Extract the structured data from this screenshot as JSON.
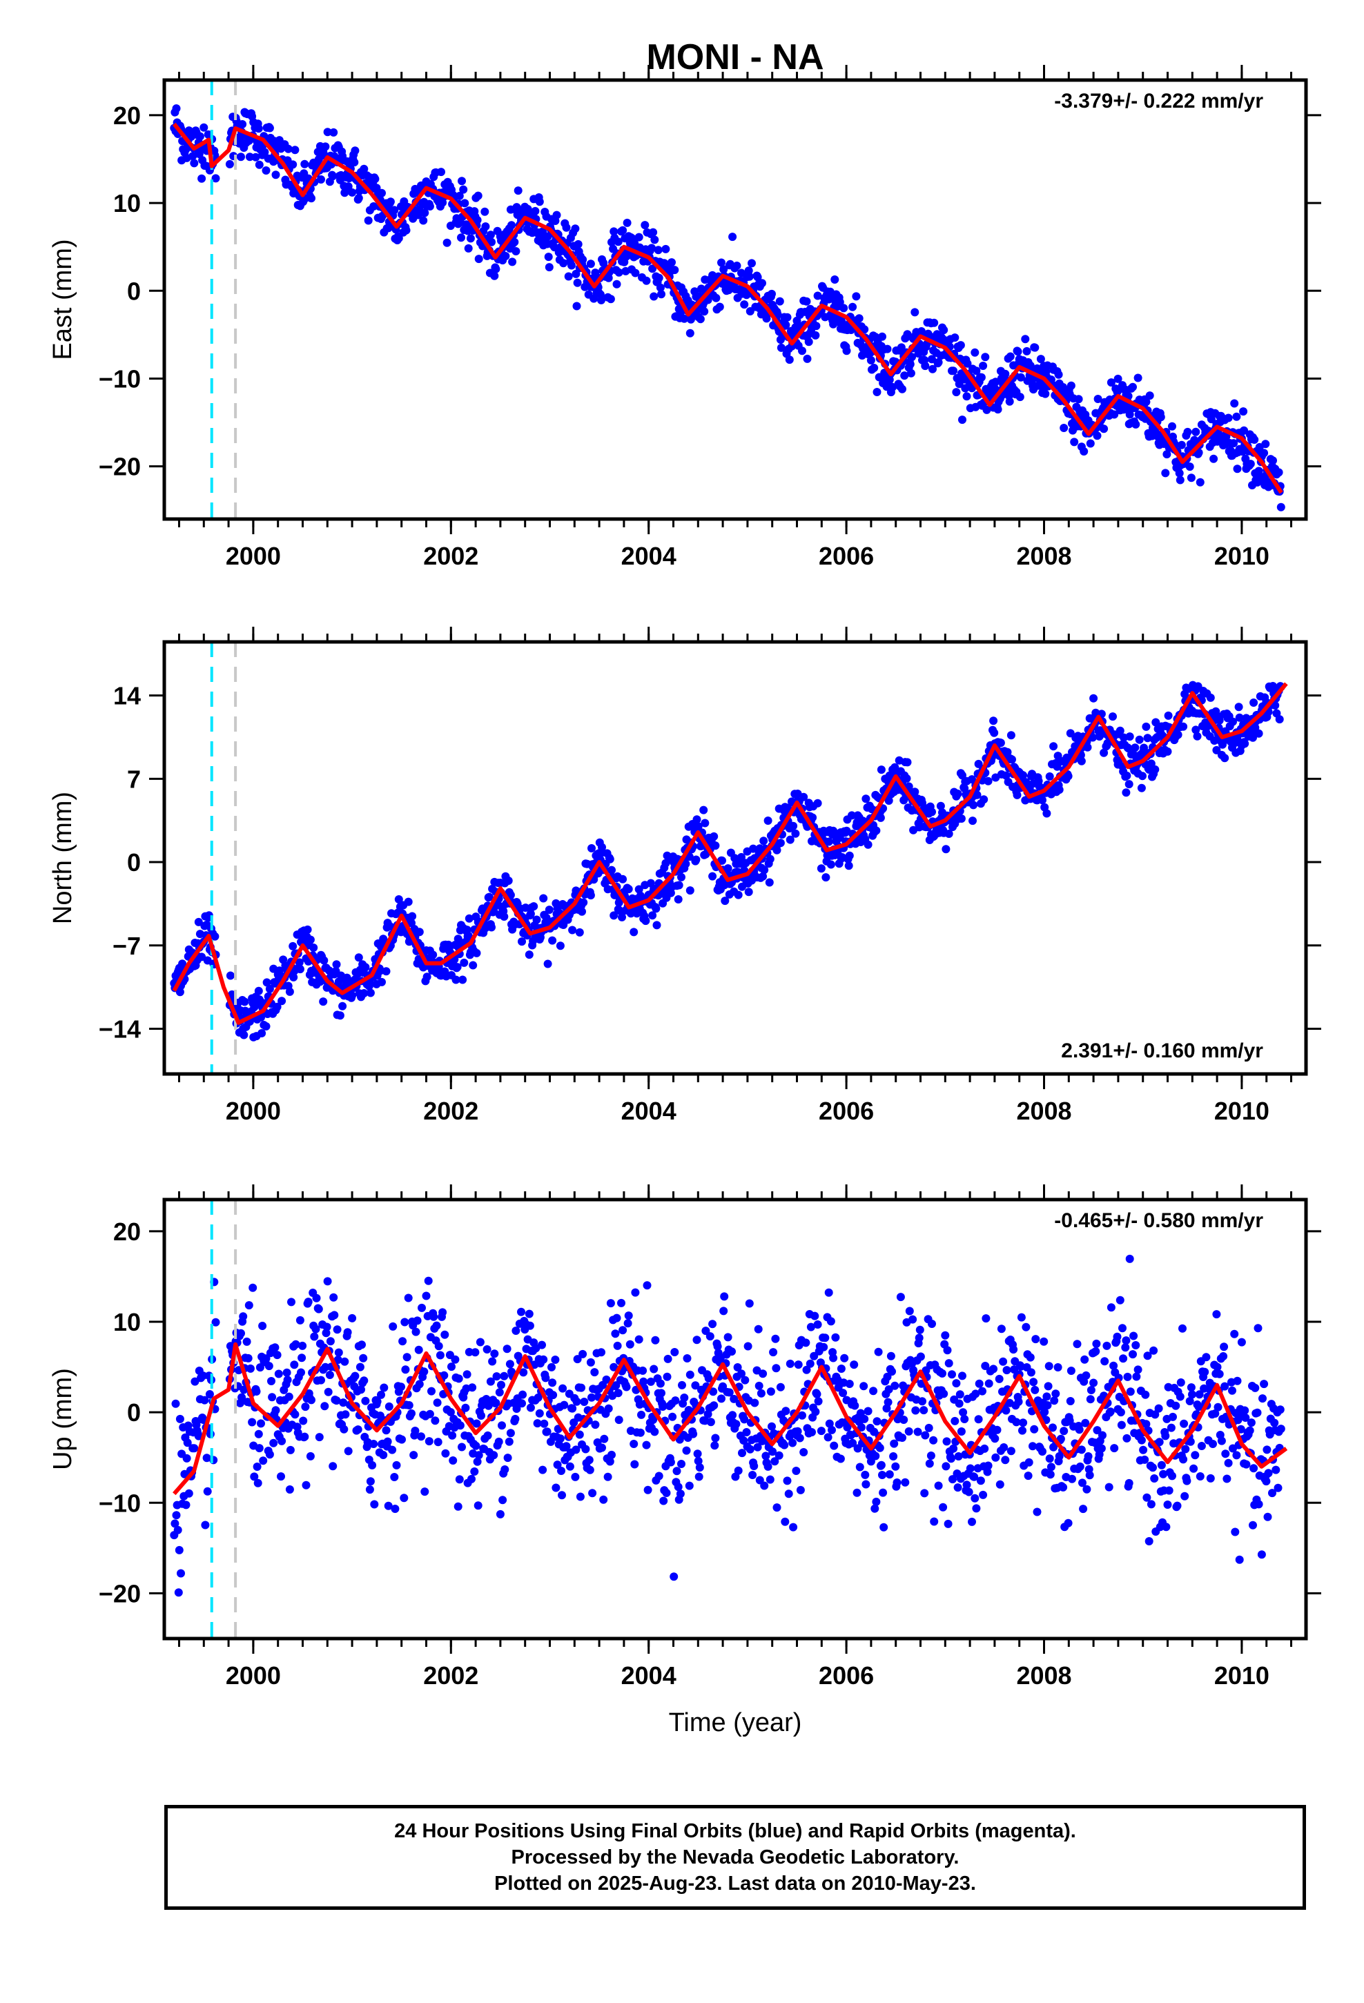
{
  "chart_data": {
    "title": "MONI - NA",
    "type": "scatter",
    "xlabel": "Time (year)",
    "xlim": [
      1999.1,
      2010.65
    ],
    "xticks": [
      2000,
      2002,
      2004,
      2006,
      2008,
      2010
    ],
    "markers": [
      {
        "name": "equipment-change",
        "x": 1999.58,
        "color": "#00e5ff"
      },
      {
        "name": "equipment-change",
        "x": 1999.82,
        "color": "#c8c8c8"
      }
    ],
    "colors": {
      "points": "#0000ff",
      "fit": "#ff0000"
    },
    "panels": [
      {
        "ylabel": "East (mm)",
        "ylim": [
          -26,
          24
        ],
        "yticks": [
          20,
          10,
          0,
          -10,
          -20
        ],
        "rate": "-3.379+/- 0.222 mm/yr",
        "rate_position": "top-right",
        "trend": -3.379,
        "scatter": 1.5,
        "fit": [
          [
            1999.2,
            19.0
          ],
          [
            1999.4,
            16.2
          ],
          [
            1999.55,
            17.2
          ],
          [
            1999.58,
            14.2
          ],
          [
            1999.75,
            16.0
          ],
          [
            1999.82,
            18.5
          ],
          [
            2000.1,
            17.2
          ],
          [
            2000.3,
            14.5
          ],
          [
            2000.5,
            10.9
          ],
          [
            2000.75,
            15.2
          ],
          [
            2001.0,
            13.5
          ],
          [
            2001.2,
            11.0
          ],
          [
            2001.45,
            7.3
          ],
          [
            2001.75,
            11.7
          ],
          [
            2002.0,
            10.5
          ],
          [
            2002.2,
            8.0
          ],
          [
            2002.45,
            3.8
          ],
          [
            2002.75,
            8.3
          ],
          [
            2003.0,
            7.0
          ],
          [
            2003.2,
            4.5
          ],
          [
            2003.45,
            0.5
          ],
          [
            2003.75,
            5.0
          ],
          [
            2004.0,
            3.8
          ],
          [
            2004.2,
            1.5
          ],
          [
            2004.4,
            -2.7
          ],
          [
            2004.75,
            1.7
          ],
          [
            2005.0,
            0.5
          ],
          [
            2005.2,
            -2.0
          ],
          [
            2005.45,
            -6.0
          ],
          [
            2005.75,
            -1.7
          ],
          [
            2006.0,
            -3.0
          ],
          [
            2006.2,
            -5.5
          ],
          [
            2006.45,
            -9.5
          ],
          [
            2006.75,
            -5.2
          ],
          [
            2007.0,
            -6.5
          ],
          [
            2007.2,
            -9.0
          ],
          [
            2007.45,
            -13.0
          ],
          [
            2007.75,
            -8.7
          ],
          [
            2008.0,
            -10.0
          ],
          [
            2008.2,
            -12.5
          ],
          [
            2008.45,
            -16.3
          ],
          [
            2008.75,
            -12.0
          ],
          [
            2009.0,
            -13.4
          ],
          [
            2009.2,
            -16.0
          ],
          [
            2009.4,
            -19.5
          ],
          [
            2009.75,
            -15.5
          ],
          [
            2010.0,
            -16.8
          ],
          [
            2010.2,
            -19.5
          ],
          [
            2010.4,
            -23.0
          ]
        ]
      },
      {
        "ylabel": "North (mm)",
        "ylim": [
          -17.8,
          18.5
        ],
        "yticks": [
          14,
          7,
          0,
          -7,
          -14
        ],
        "rate": "2.391+/- 0.160 mm/yr",
        "rate_position": "bottom-right",
        "trend": 2.391,
        "scatter": 1.0,
        "fit": [
          [
            1999.2,
            -10.8
          ],
          [
            1999.35,
            -8.5
          ],
          [
            1999.55,
            -6.2
          ],
          [
            1999.7,
            -10.5
          ],
          [
            1999.85,
            -13.5
          ],
          [
            2000.1,
            -12.5
          ],
          [
            2000.3,
            -10.0
          ],
          [
            2000.5,
            -7.0
          ],
          [
            2000.75,
            -10.0
          ],
          [
            2000.9,
            -11.0
          ],
          [
            2001.2,
            -9.5
          ],
          [
            2001.5,
            -4.5
          ],
          [
            2001.75,
            -8.5
          ],
          [
            2001.9,
            -8.5
          ],
          [
            2002.2,
            -6.8
          ],
          [
            2002.5,
            -2.2
          ],
          [
            2002.8,
            -6.0
          ],
          [
            2003.0,
            -5.5
          ],
          [
            2003.25,
            -3.5
          ],
          [
            2003.5,
            0.0
          ],
          [
            2003.8,
            -3.8
          ],
          [
            2004.0,
            -3.2
          ],
          [
            2004.25,
            -1.0
          ],
          [
            2004.5,
            2.5
          ],
          [
            2004.8,
            -1.5
          ],
          [
            2005.0,
            -1.0
          ],
          [
            2005.25,
            1.5
          ],
          [
            2005.5,
            5.0
          ],
          [
            2005.8,
            1.0
          ],
          [
            2006.0,
            1.5
          ],
          [
            2006.25,
            3.5
          ],
          [
            2006.5,
            7.2
          ],
          [
            2006.85,
            3.0
          ],
          [
            2007.0,
            3.5
          ],
          [
            2007.25,
            5.5
          ],
          [
            2007.5,
            9.8
          ],
          [
            2007.85,
            5.5
          ],
          [
            2008.0,
            6.0
          ],
          [
            2008.25,
            8.0
          ],
          [
            2008.55,
            12.2
          ],
          [
            2008.85,
            8.0
          ],
          [
            2009.0,
            8.5
          ],
          [
            2009.25,
            10.5
          ],
          [
            2009.5,
            14.2
          ],
          [
            2009.8,
            10.5
          ],
          [
            2010.0,
            11.0
          ],
          [
            2010.2,
            12.5
          ],
          [
            2010.45,
            15.0
          ]
        ]
      },
      {
        "ylabel": "Up (mm)",
        "ylim": [
          -25,
          23.5
        ],
        "yticks": [
          20,
          10,
          0,
          -10,
          -20
        ],
        "rate": "-0.465+/- 0.580 mm/yr",
        "rate_position": "top-right",
        "trend": -0.465,
        "scatter": 4.5,
        "fit": [
          [
            1999.2,
            -9.0
          ],
          [
            1999.4,
            -6.5
          ],
          [
            1999.6,
            1.5
          ],
          [
            1999.75,
            2.5
          ],
          [
            1999.82,
            7.5
          ],
          [
            2000.0,
            1.0
          ],
          [
            2000.25,
            -1.5
          ],
          [
            2000.5,
            2.0
          ],
          [
            2000.75,
            7.0
          ],
          [
            2001.0,
            1.0
          ],
          [
            2001.25,
            -2.0
          ],
          [
            2001.5,
            1.0
          ],
          [
            2001.75,
            6.5
          ],
          [
            2002.0,
            1.5
          ],
          [
            2002.25,
            -2.3
          ],
          [
            2002.5,
            0.5
          ],
          [
            2002.75,
            6.2
          ],
          [
            2003.0,
            0.5
          ],
          [
            2003.2,
            -2.8
          ],
          [
            2003.5,
            1.0
          ],
          [
            2003.75,
            5.8
          ],
          [
            2004.0,
            1.0
          ],
          [
            2004.25,
            -3.0
          ],
          [
            2004.5,
            0.5
          ],
          [
            2004.75,
            5.3
          ],
          [
            2005.0,
            0.0
          ],
          [
            2005.25,
            -3.5
          ],
          [
            2005.5,
            0.0
          ],
          [
            2005.75,
            5.0
          ],
          [
            2006.0,
            -0.5
          ],
          [
            2006.25,
            -4.0
          ],
          [
            2006.5,
            0.0
          ],
          [
            2006.75,
            4.5
          ],
          [
            2007.0,
            -1.0
          ],
          [
            2007.25,
            -4.5
          ],
          [
            2007.5,
            -0.5
          ],
          [
            2007.75,
            4.0
          ],
          [
            2008.0,
            -1.5
          ],
          [
            2008.25,
            -5.0
          ],
          [
            2008.5,
            -1.0
          ],
          [
            2008.75,
            3.5
          ],
          [
            2009.0,
            -2.0
          ],
          [
            2009.25,
            -5.5
          ],
          [
            2009.5,
            -2.0
          ],
          [
            2009.75,
            3.0
          ],
          [
            2010.0,
            -3.5
          ],
          [
            2010.2,
            -6.0
          ],
          [
            2010.45,
            -4.0
          ]
        ]
      }
    ]
  },
  "footer": {
    "line1": "24 Hour Positions Using Final Orbits (blue) and Rapid Orbits (magenta).",
    "line2": "Processed by the Nevada Geodetic Laboratory.",
    "line3": "Plotted on 2025-Aug-23. Last data on 2010-May-23."
  }
}
